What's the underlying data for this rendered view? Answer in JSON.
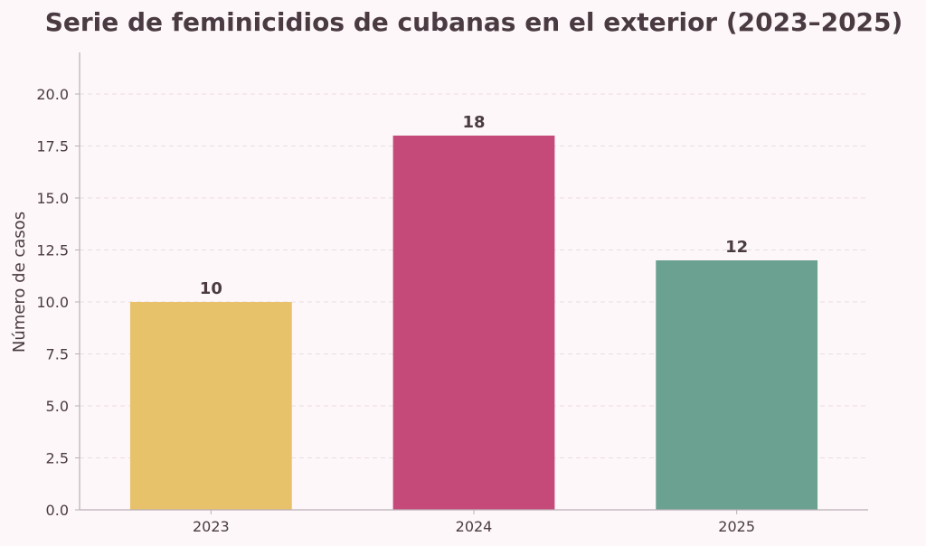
{
  "chart_data": {
    "type": "bar",
    "title": "Serie de feminicidios de cubanas en el exterior (2023–2025)",
    "xlabel": "",
    "ylabel": "Número de casos",
    "categories": [
      "2023",
      "2024",
      "2025"
    ],
    "values": [
      10,
      18,
      12
    ],
    "value_labels": [
      "10",
      "18",
      "12"
    ],
    "colors": [
      "#e8c26a",
      "#c54a79",
      "#6ba190"
    ],
    "ylim": [
      0,
      22
    ],
    "yticks": [
      0,
      2.5,
      5,
      7.5,
      10,
      12.5,
      15,
      17.5,
      20
    ],
    "ytick_labels": [
      "0.0",
      "2.5",
      "5.0",
      "7.5",
      "10.0",
      "12.5",
      "15.0",
      "17.5",
      "20.0"
    ],
    "grid": true,
    "legend": "none"
  }
}
